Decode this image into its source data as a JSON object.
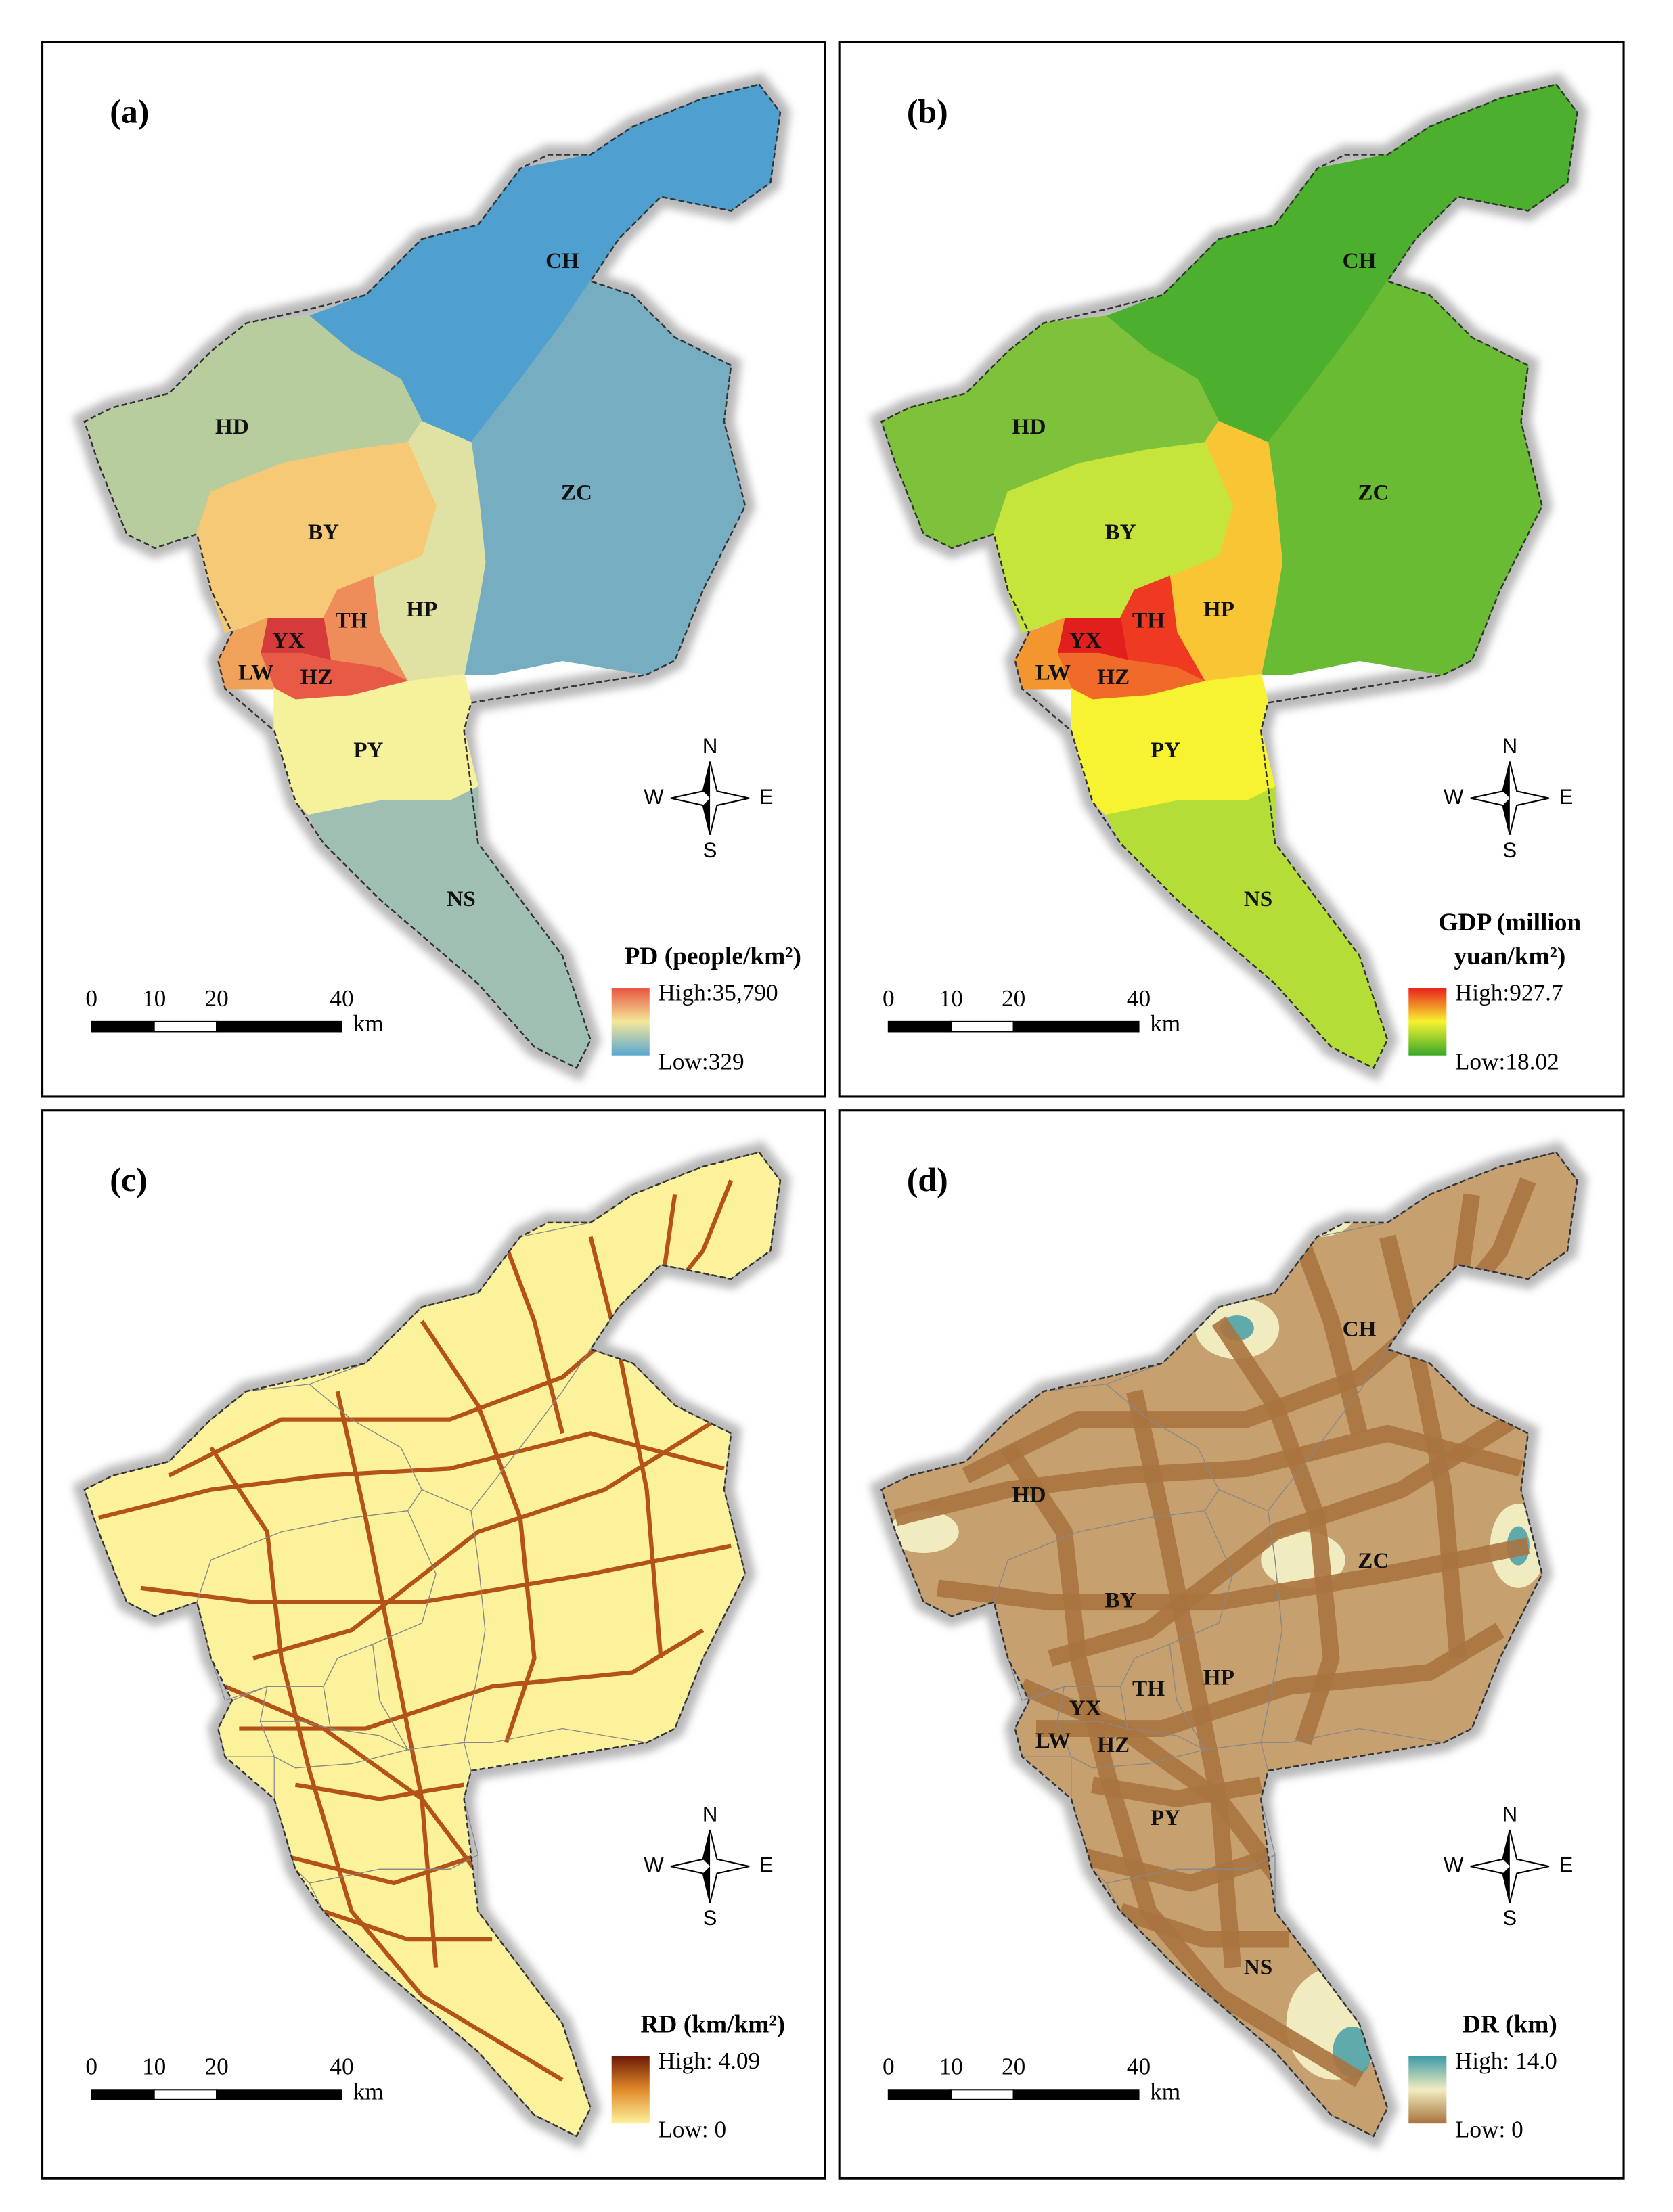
{
  "panels": [
    {
      "label": "(a)",
      "districts": [
        "CH",
        "HD",
        "ZC",
        "HP",
        "BY",
        "TH",
        "YX",
        "HZ",
        "LW",
        "PY",
        "NS"
      ],
      "district_colors": [
        "#4fa0cf",
        "#b7cd9e",
        "#77adc0",
        "#dfe2a2",
        "#f6c977",
        "#ee8c5a",
        "#d63b3b",
        "#e65a46",
        "#f0a15a",
        "#f6f29c",
        "#9fbfb3"
      ],
      "legend": {
        "title": [
          "PD (people/km²)"
        ],
        "high": "High:35,790",
        "low": "Low:329",
        "colors": [
          "#e8553f",
          "#f4e79a",
          "#5ba7d1"
        ]
      },
      "scale_bar": {
        "ticks": [
          0,
          10,
          20,
          40
        ],
        "unit": "km"
      },
      "compass": {
        "n": "N",
        "s": "S",
        "w": "W",
        "e": "E"
      }
    },
    {
      "label": "(b)",
      "districts": [
        "CH",
        "HD",
        "ZC",
        "HP",
        "BY",
        "TH",
        "YX",
        "HZ",
        "LW",
        "PY",
        "NS"
      ],
      "district_colors": [
        "#4caf2d",
        "#7dc23a",
        "#6abb34",
        "#f8c535",
        "#c5e43c",
        "#ef3a22",
        "#e11f1c",
        "#f06a2a",
        "#f3962f",
        "#f8f331",
        "#b4dd38"
      ],
      "legend": {
        "title": [
          "GDP (million",
          "yuan/km²)"
        ],
        "high": "High:927.7",
        "low": "Low:18.02",
        "colors": [
          "#e8201c",
          "#f8f331",
          "#3aa82a"
        ]
      },
      "scale_bar": {
        "ticks": [
          0,
          10,
          20,
          40
        ],
        "unit": "km"
      },
      "compass": {
        "n": "N",
        "s": "S",
        "w": "W",
        "e": "E"
      }
    },
    {
      "label": "(c)",
      "fill": "#fdf29c",
      "road_color": "#b4521a",
      "legend": {
        "title": [
          "RD (km/km²)"
        ],
        "high": "High: 4.09",
        "low": "Low: 0",
        "colors": [
          "#6b1a05",
          "#e08a2a",
          "#fdf29c"
        ]
      },
      "scale_bar": {
        "ticks": [
          0,
          10,
          20,
          40
        ],
        "unit": "km"
      },
      "compass": {
        "n": "N",
        "s": "S",
        "w": "W",
        "e": "E"
      }
    },
    {
      "label": "(d)",
      "districts": [
        "CH",
        "HD",
        "ZC",
        "HP",
        "BY",
        "TH",
        "YX",
        "HZ",
        "LW",
        "PY",
        "NS"
      ],
      "fill": "#ead9a8",
      "road_color": "#a8733f",
      "legend": {
        "title": [
          "DR (km)"
        ],
        "high": "High: 14.0",
        "low": "Low: 0",
        "colors": [
          "#3d9aa6",
          "#f1ecc0",
          "#a8733f"
        ]
      },
      "scale_bar": {
        "ticks": [
          0,
          10,
          20,
          40
        ],
        "unit": "km"
      },
      "compass": {
        "n": "N",
        "s": "S",
        "w": "W",
        "e": "E"
      }
    }
  ]
}
